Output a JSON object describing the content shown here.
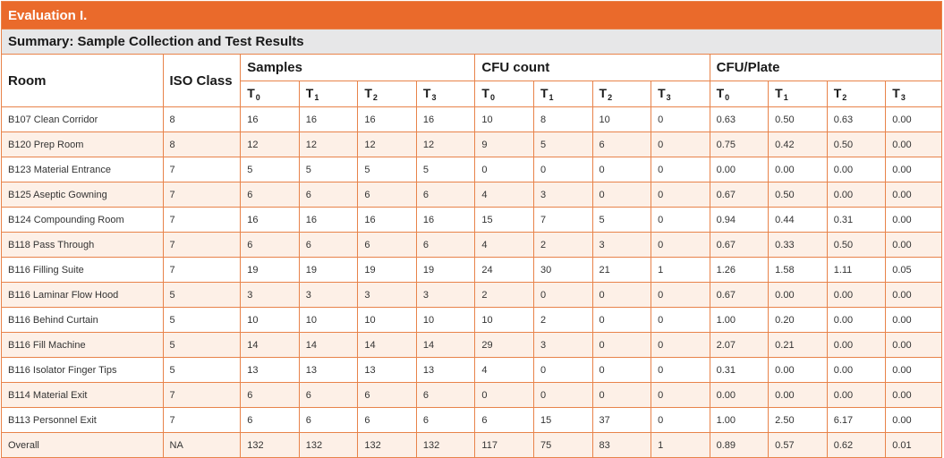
{
  "title": "Evaluation I.",
  "subtitle": "Summary: Sample Collection and Test Results",
  "columns": {
    "room": "Room",
    "iso_class": "ISO Class",
    "groups": [
      "Samples",
      "CFU count",
      "CFU/Plate"
    ],
    "time_points": [
      {
        "base": "T",
        "sub": "0"
      },
      {
        "base": "T",
        "sub": "1"
      },
      {
        "base": "T",
        "sub": "2"
      },
      {
        "base": "T",
        "sub": "3"
      }
    ]
  },
  "rows": [
    {
      "room": "B107 Clean Corridor",
      "iso": "8",
      "samples": [
        "16",
        "16",
        "16",
        "16"
      ],
      "cfu": [
        "10",
        "8",
        "10",
        "0"
      ],
      "cfu_plate": [
        "0.63",
        "0.50",
        "0.63",
        "0.00"
      ]
    },
    {
      "room": "B120 Prep Room",
      "iso": "8",
      "samples": [
        "12",
        "12",
        "12",
        "12"
      ],
      "cfu": [
        "9",
        "5",
        "6",
        "0"
      ],
      "cfu_plate": [
        "0.75",
        "0.42",
        "0.50",
        "0.00"
      ]
    },
    {
      "room": "B123 Material Entrance",
      "iso": "7",
      "samples": [
        "5",
        "5",
        "5",
        "5"
      ],
      "cfu": [
        "0",
        "0",
        "0",
        "0"
      ],
      "cfu_plate": [
        "0.00",
        "0.00",
        "0.00",
        "0.00"
      ]
    },
    {
      "room": "B125 Aseptic Gowning",
      "iso": "7",
      "samples": [
        "6",
        "6",
        "6",
        "6"
      ],
      "cfu": [
        "4",
        "3",
        "0",
        "0"
      ],
      "cfu_plate": [
        "0.67",
        "0.50",
        "0.00",
        "0.00"
      ]
    },
    {
      "room": "B124 Compounding Room",
      "iso": "7",
      "samples": [
        "16",
        "16",
        "16",
        "16"
      ],
      "cfu": [
        "15",
        "7",
        "5",
        "0"
      ],
      "cfu_plate": [
        "0.94",
        "0.44",
        "0.31",
        "0.00"
      ]
    },
    {
      "room": "B118 Pass Through",
      "iso": "7",
      "samples": [
        "6",
        "6",
        "6",
        "6"
      ],
      "cfu": [
        "4",
        "2",
        "3",
        "0"
      ],
      "cfu_plate": [
        "0.67",
        "0.33",
        "0.50",
        "0.00"
      ]
    },
    {
      "room": "B116 Filling Suite",
      "iso": "7",
      "samples": [
        "19",
        "19",
        "19",
        "19"
      ],
      "cfu": [
        "24",
        "30",
        "21",
        "1"
      ],
      "cfu_plate": [
        "1.26",
        "1.58",
        "1.11",
        "0.05"
      ]
    },
    {
      "room": "B116 Laminar Flow Hood",
      "iso": "5",
      "samples": [
        "3",
        "3",
        "3",
        "3"
      ],
      "cfu": [
        "2",
        "0",
        "0",
        "0"
      ],
      "cfu_plate": [
        "0.67",
        "0.00",
        "0.00",
        "0.00"
      ]
    },
    {
      "room": "B116 Behind Curtain",
      "iso": "5",
      "samples": [
        "10",
        "10",
        "10",
        "10"
      ],
      "cfu": [
        "10",
        "2",
        "0",
        "0"
      ],
      "cfu_plate": [
        "1.00",
        "0.20",
        "0.00",
        "0.00"
      ]
    },
    {
      "room": "B116 Fill Machine",
      "iso": "5",
      "samples": [
        "14",
        "14",
        "14",
        "14"
      ],
      "cfu": [
        "29",
        "3",
        "0",
        "0"
      ],
      "cfu_plate": [
        "2.07",
        "0.21",
        "0.00",
        "0.00"
      ]
    },
    {
      "room": "B116 Isolator Finger Tips",
      "iso": "5",
      "samples": [
        "13",
        "13",
        "13",
        "13"
      ],
      "cfu": [
        "4",
        "0",
        "0",
        "0"
      ],
      "cfu_plate": [
        "0.31",
        "0.00",
        "0.00",
        "0.00"
      ]
    },
    {
      "room": "B114 Material Exit",
      "iso": "7",
      "samples": [
        "6",
        "6",
        "6",
        "6"
      ],
      "cfu": [
        "0",
        "0",
        "0",
        "0"
      ],
      "cfu_plate": [
        "0.00",
        "0.00",
        "0.00",
        "0.00"
      ]
    },
    {
      "room": "B113 Personnel Exit",
      "iso": "7",
      "samples": [
        "6",
        "6",
        "6",
        "6"
      ],
      "cfu": [
        "6",
        "15",
        "37",
        "0"
      ],
      "cfu_plate": [
        "1.00",
        "2.50",
        "6.17",
        "0.00"
      ]
    },
    {
      "room": "Overall",
      "iso": "NA",
      "samples": [
        "132",
        "132",
        "132",
        "132"
      ],
      "cfu": [
        "117",
        "75",
        "83",
        "1"
      ],
      "cfu_plate": [
        "0.89",
        "0.57",
        "0.62",
        "0.01"
      ]
    }
  ],
  "colors": {
    "header_orange": "#ea6a2b",
    "border": "#e8834a",
    "stripe": "#fdf0e7",
    "subtitle_gray": "#e7e7e8"
  }
}
